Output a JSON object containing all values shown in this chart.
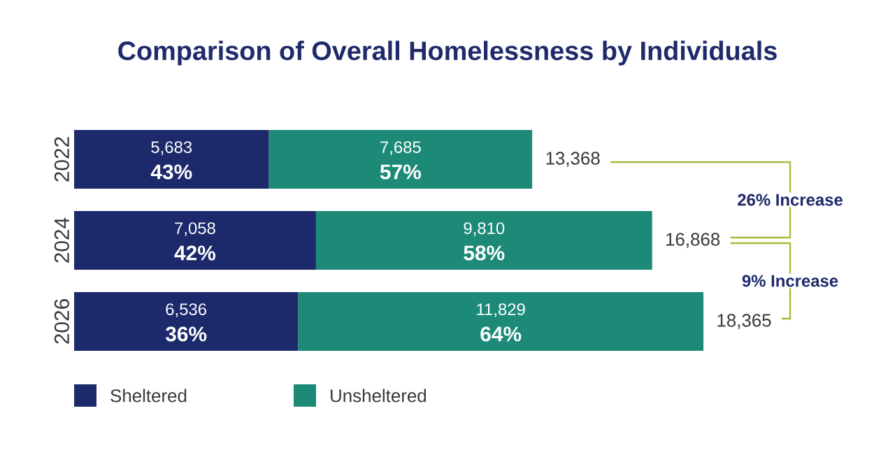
{
  "chart_data": {
    "type": "bar",
    "orientation": "horizontal",
    "stacked": true,
    "title": "Comparison of Overall Homelessness by Individuals",
    "categories": [
      "2022",
      "2024",
      "2026"
    ],
    "series": [
      {
        "name": "Sheltered",
        "color": "#1c2a6b",
        "values": [
          5683,
          7058,
          6536
        ],
        "value_labels": [
          "5,683",
          "7,058",
          "6,536"
        ]
      },
      {
        "name": "Unsheltered",
        "color": "#1d8a78",
        "values": [
          7685,
          9810,
          11829
        ],
        "value_labels": [
          "7,685",
          "9,810",
          "11,829"
        ]
      }
    ],
    "totals": [
      "13,368",
      "16,868",
      "18,365"
    ],
    "annotations": [
      {
        "text": "43%",
        "x": 2841.5,
        "y": "2022"
      },
      {
        "text": "57%",
        "x": 9525.5,
        "y": "2022"
      },
      {
        "text": "42%",
        "x": 3529,
        "y": "2024"
      },
      {
        "text": "58%",
        "x": 11963,
        "y": "2024"
      },
      {
        "text": "36%",
        "x": 3268,
        "y": "2026"
      },
      {
        "text": "64%",
        "x": 12450.5,
        "y": "2026"
      },
      "26% Increase",
      "9% Increase"
    ],
    "legend": "bottom left"
  }
}
